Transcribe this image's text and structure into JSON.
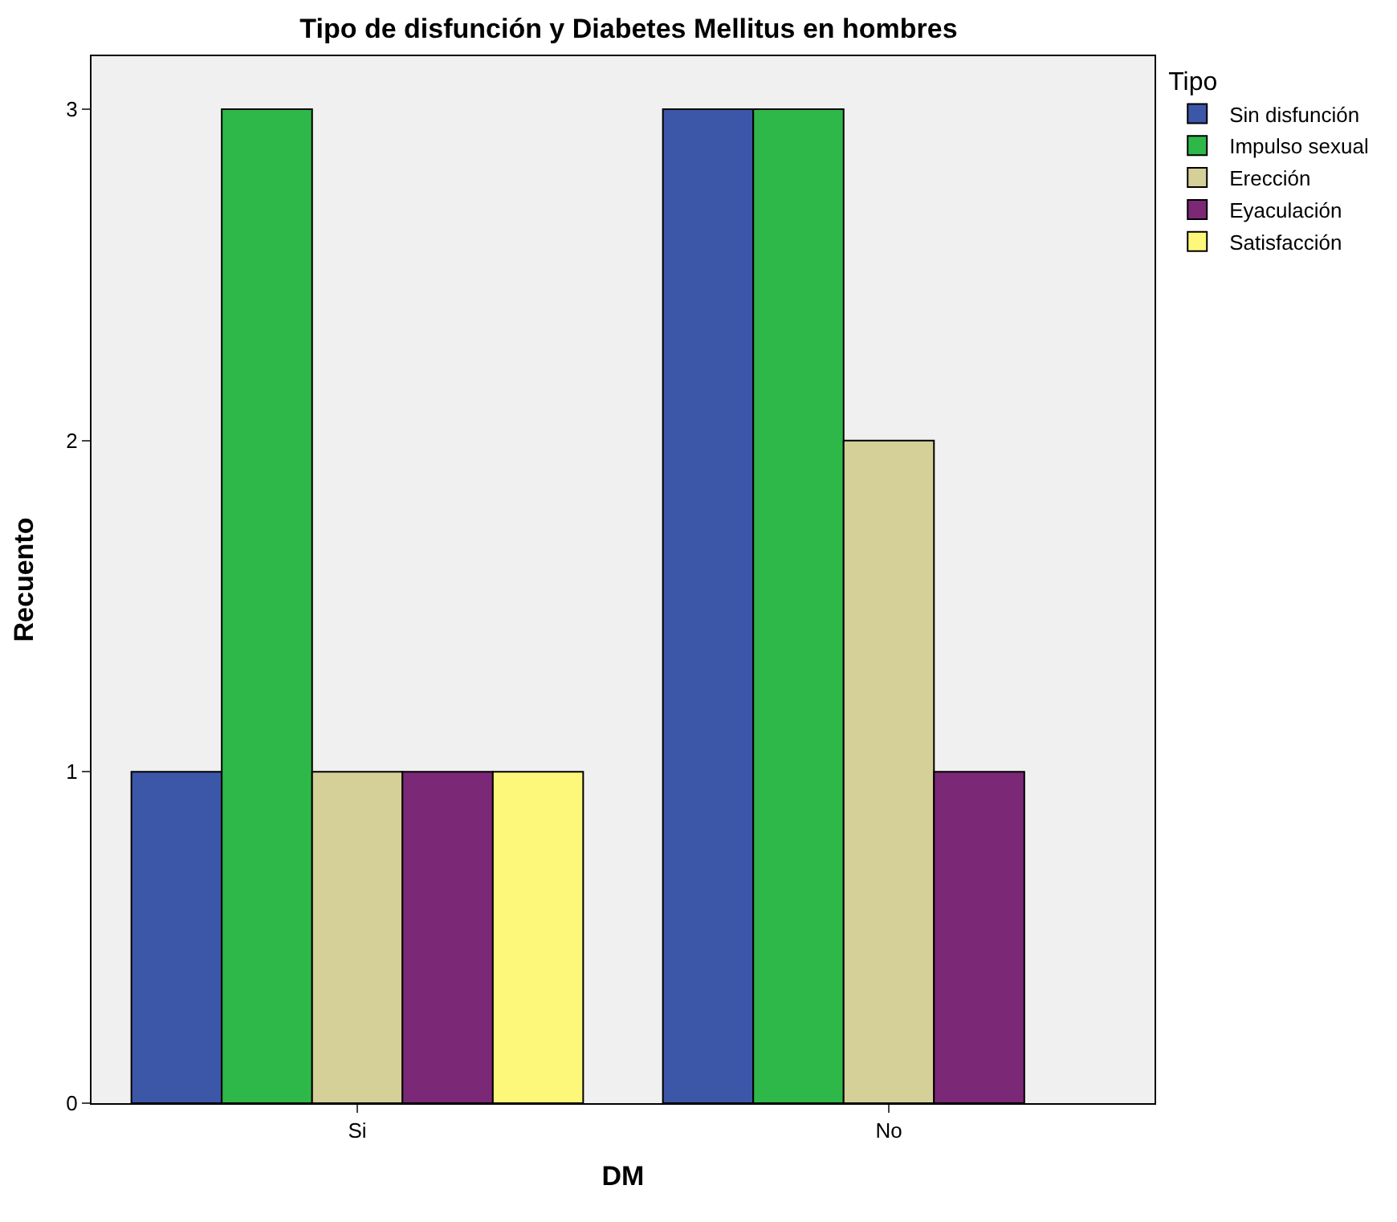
{
  "chart_data": {
    "type": "bar",
    "title": "Tipo de disfunción y Diabetes Mellitus en hombres",
    "xlabel": "DM",
    "ylabel": "Recuento",
    "legend_title": "Tipo",
    "categories": [
      "Si",
      "No"
    ],
    "series": [
      {
        "name": "Sin disfunción",
        "color": "#3c56a8",
        "values": [
          1,
          3
        ]
      },
      {
        "name": "Impulso sexual",
        "color": "#2fb84a",
        "values": [
          3,
          3
        ]
      },
      {
        "name": "Erección",
        "color": "#d5cf98",
        "values": [
          1,
          2
        ]
      },
      {
        "name": "Eyaculación",
        "color": "#7b2877",
        "values": [
          1,
          1
        ]
      },
      {
        "name": "Satisfacción",
        "color": "#fdf87a",
        "values": [
          1,
          null
        ]
      }
    ],
    "ylim": [
      0,
      3.16
    ],
    "yticks": [
      0,
      1,
      2,
      3
    ],
    "grid": false,
    "legend": "top right"
  }
}
